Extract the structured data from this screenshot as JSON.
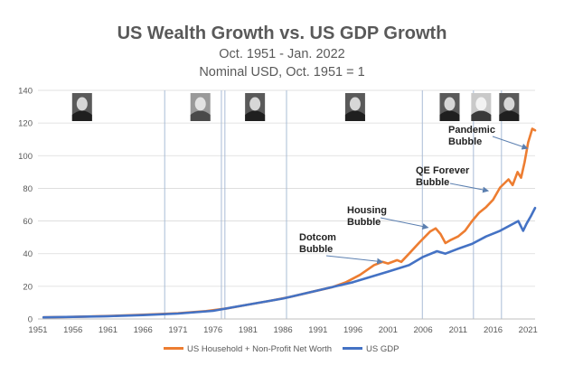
{
  "chart_data": {
    "type": "line",
    "title": "US Wealth Growth vs. US GDP Growth",
    "subtitle_1": "Oct. 1951 - Jan. 2022",
    "subtitle_2": "Nominal USD, Oct. 1951 = 1",
    "ylim": [
      0,
      140
    ],
    "xlim": [
      1951,
      2022
    ],
    "y_ticks": [
      0,
      20,
      40,
      60,
      80,
      100,
      120,
      140
    ],
    "x_ticks": [
      1951,
      1956,
      1961,
      1966,
      1971,
      1976,
      1981,
      1986,
      1991,
      1996,
      2001,
      2006,
      2011,
      2016,
      2021
    ],
    "grid": "horizontal",
    "legend_position": "bottom",
    "colors": {
      "wealth": "#ED7D31",
      "gdp": "#4472C4",
      "vline": "#A9BCD6",
      "grid": "#D9D9D9",
      "arrow": "#5B7FB0"
    },
    "vertical_lines": [
      1969.1,
      1977.2,
      1977.7,
      1986.5,
      2005.9,
      2013.2,
      2017.2
    ],
    "series": [
      {
        "name": "US Household + Non-Profit Net Worth",
        "color": "#ED7D31",
        "points": [
          [
            1951.8,
            1.0
          ],
          [
            1956,
            1.3
          ],
          [
            1961,
            1.8
          ],
          [
            1966,
            2.6
          ],
          [
            1971,
            3.5
          ],
          [
            1975,
            4.8
          ],
          [
            1978,
            6.5
          ],
          [
            1981,
            8.8
          ],
          [
            1984,
            11.0
          ],
          [
            1987,
            13.5
          ],
          [
            1990,
            16.5
          ],
          [
            1993,
            19.5
          ],
          [
            1995,
            22.5
          ],
          [
            1997,
            27.0
          ],
          [
            1999,
            33.0
          ],
          [
            2000.2,
            35.0
          ],
          [
            2001,
            34.0
          ],
          [
            2002.3,
            36.0
          ],
          [
            2002.9,
            35.0
          ],
          [
            2004,
            40.0
          ],
          [
            2005.5,
            47.0
          ],
          [
            2007,
            53.5
          ],
          [
            2007.8,
            55.5
          ],
          [
            2008.5,
            52.0
          ],
          [
            2009.2,
            46.5
          ],
          [
            2010,
            48.5
          ],
          [
            2011,
            50.5
          ],
          [
            2012,
            54.0
          ],
          [
            2013,
            60.0
          ],
          [
            2014,
            65.0
          ],
          [
            2015,
            68.5
          ],
          [
            2016,
            73.0
          ],
          [
            2017,
            80.5
          ],
          [
            2018.2,
            85.5
          ],
          [
            2018.8,
            82.0
          ],
          [
            2019.5,
            90.0
          ],
          [
            2020,
            86.5
          ],
          [
            2020.5,
            96.0
          ],
          [
            2021,
            108.0
          ],
          [
            2021.6,
            116.5
          ],
          [
            2022,
            115.5
          ]
        ]
      },
      {
        "name": "US GDP",
        "color": "#4472C4",
        "points": [
          [
            1951.8,
            1.0
          ],
          [
            1956,
            1.3
          ],
          [
            1961,
            1.7
          ],
          [
            1966,
            2.4
          ],
          [
            1971,
            3.3
          ],
          [
            1976,
            5.0
          ],
          [
            1981,
            8.8
          ],
          [
            1986,
            12.5
          ],
          [
            1991,
            17.5
          ],
          [
            1996,
            22.5
          ],
          [
            2001,
            29.0
          ],
          [
            2004,
            33.0
          ],
          [
            2006,
            38.0
          ],
          [
            2008,
            41.5
          ],
          [
            2009.2,
            40.0
          ],
          [
            2011,
            43.0
          ],
          [
            2013,
            46.0
          ],
          [
            2015,
            50.5
          ],
          [
            2017,
            54.0
          ],
          [
            2019.6,
            60.0
          ],
          [
            2020.3,
            54.0
          ],
          [
            2020.8,
            58.5
          ],
          [
            2021.4,
            63.0
          ],
          [
            2022,
            68.0
          ]
        ]
      }
    ],
    "annotations": [
      {
        "id": "dotcom",
        "lines": [
          "Dotcom",
          "Bubble"
        ],
        "target": [
          2000.2,
          35.0
        ]
      },
      {
        "id": "housing",
        "lines": [
          "Housing",
          "Bubble"
        ],
        "target": [
          2006.7,
          56.0
        ]
      },
      {
        "id": "qe",
        "lines": [
          "QE Forever",
          "Bubble"
        ],
        "target": [
          2015.3,
          78.5
        ]
      },
      {
        "id": "pandemic",
        "lines": [
          "Pandemic",
          "Bubble"
        ],
        "target": [
          2020.9,
          104.5
        ]
      }
    ],
    "portraits": [
      {
        "id": "portrait-1",
        "x_year": 1957.3,
        "tone": "dark"
      },
      {
        "id": "portrait-2",
        "x_year": 1974.2,
        "tone": "gray"
      },
      {
        "id": "portrait-3",
        "x_year": 1982.0,
        "tone": "dark"
      },
      {
        "id": "portrait-4",
        "x_year": 1996.3,
        "tone": "dark"
      },
      {
        "id": "portrait-5",
        "x_year": 2009.8,
        "tone": "dark"
      },
      {
        "id": "portrait-6",
        "x_year": 2014.3,
        "tone": "light"
      },
      {
        "id": "portrait-7",
        "x_year": 2018.3,
        "tone": "dark"
      }
    ]
  }
}
